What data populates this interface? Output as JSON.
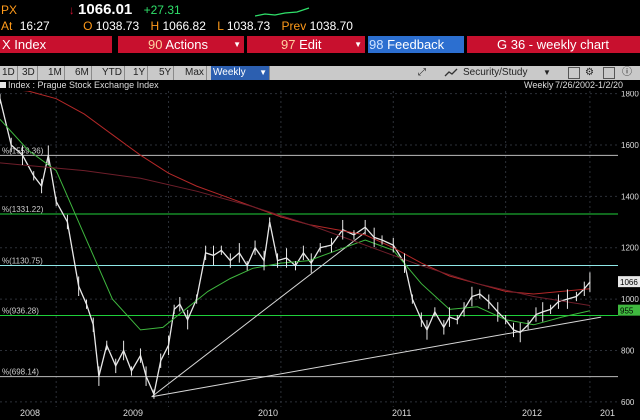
{
  "quote": {
    "ticker": "PX",
    "arrow": "↓",
    "last": "1066.01",
    "change": "+27.31",
    "at_label": "At",
    "time": "16:27",
    "o_label": "O",
    "open": "1038.73",
    "h_label": "H",
    "high": "1066.82",
    "l_label": "L",
    "low": "1038.73",
    "prev_label": "Prev",
    "prev": "1038.70"
  },
  "command_bar": {
    "index_label": "X Index",
    "actions_num": "90",
    "actions_label": "Actions",
    "edit_num": "97",
    "edit_label": "Edit",
    "feedback_num": "98",
    "feedback_label": "Feedback",
    "chart_title": "G 36 - weekly chart"
  },
  "toolbar": {
    "ranges": [
      "1D",
      "3D",
      "1M",
      "6M",
      "YTD",
      "1Y",
      "5Y",
      "Max"
    ],
    "period": "Weekly",
    "security_label": "Security/Study"
  },
  "subheader": {
    "legend": "Index : Prague Stock Exchange Index",
    "period_label": "Weekly",
    "date_range": "7/26/2002-1/2/20"
  },
  "chart_data": {
    "type": "line",
    "title": "",
    "xlabel": "",
    "ylabel": "",
    "x_ticks": [
      "2008",
      "2009",
      "2010",
      "2011",
      "2012",
      "201"
    ],
    "y_ticks": [
      "600",
      "800",
      "1000",
      "1200",
      "1400",
      "1600",
      "1800"
    ],
    "ylim": [
      580,
      1810
    ],
    "fib_levels": [
      {
        "label": "%(1559.36)",
        "value": 1559.36
      },
      {
        "label": "%(1331.22)",
        "value": 1331.22
      },
      {
        "label": "%(1130.75)",
        "value": 1130.75
      },
      {
        "label": "%(936.28)",
        "value": 936.28
      },
      {
        "label": "%(698.14)",
        "value": 698.14
      }
    ],
    "last_price_tag": "1066",
    "ma_tag": "955",
    "series": [
      {
        "values": [
          [
            2007.75,
            1780
          ],
          [
            2007.85,
            1600
          ],
          [
            2007.95,
            1560
          ],
          [
            2008.05,
            1480
          ],
          [
            2008.12,
            1440
          ],
          [
            2008.18,
            1560
          ],
          [
            2008.25,
            1380
          ],
          [
            2008.35,
            1300
          ],
          [
            2008.45,
            1050
          ],
          [
            2008.52,
            980
          ],
          [
            2008.58,
            900
          ],
          [
            2008.63,
            700
          ],
          [
            2008.7,
            820
          ],
          [
            2008.78,
            740
          ],
          [
            2008.85,
            800
          ],
          [
            2008.92,
            720
          ],
          [
            2009.0,
            780
          ],
          [
            2009.05,
            700
          ],
          [
            2009.12,
            630
          ],
          [
            2009.18,
            760
          ],
          [
            2009.25,
            820
          ],
          [
            2009.3,
            960
          ],
          [
            2009.35,
            980
          ],
          [
            2009.42,
            920
          ],
          [
            2009.5,
            1000
          ],
          [
            2009.58,
            1180
          ],
          [
            2009.65,
            1170
          ],
          [
            2009.72,
            1190
          ],
          [
            2009.8,
            1150
          ],
          [
            2009.88,
            1180
          ],
          [
            2009.95,
            1130
          ],
          [
            2010.02,
            1200
          ],
          [
            2010.1,
            1150
          ],
          [
            2010.15,
            1300
          ],
          [
            2010.22,
            1150
          ],
          [
            2010.3,
            1160
          ],
          [
            2010.38,
            1130
          ],
          [
            2010.45,
            1180
          ],
          [
            2010.52,
            1140
          ],
          [
            2010.6,
            1200
          ],
          [
            2010.7,
            1210
          ],
          [
            2010.8,
            1270
          ],
          [
            2010.9,
            1250
          ],
          [
            2011.0,
            1280
          ],
          [
            2011.08,
            1240
          ],
          [
            2011.15,
            1230
          ],
          [
            2011.25,
            1210
          ],
          [
            2011.35,
            1140
          ],
          [
            2011.42,
            1000
          ],
          [
            2011.5,
            920
          ],
          [
            2011.55,
            880
          ],
          [
            2011.62,
            950
          ],
          [
            2011.7,
            890
          ],
          [
            2011.75,
            930
          ],
          [
            2011.82,
            920
          ],
          [
            2011.88,
            960
          ],
          [
            2011.95,
            1010
          ],
          [
            2012.02,
            1020
          ],
          [
            2012.1,
            990
          ],
          [
            2012.18,
            950
          ],
          [
            2012.25,
            920
          ],
          [
            2012.32,
            880
          ],
          [
            2012.38,
            870
          ],
          [
            2012.45,
            900
          ],
          [
            2012.52,
            940
          ],
          [
            2012.58,
            950
          ],
          [
            2012.65,
            960
          ],
          [
            2012.72,
            990
          ],
          [
            2012.8,
            1000
          ],
          [
            2012.88,
            1010
          ],
          [
            2012.95,
            1040
          ],
          [
            2013.0,
            1066
          ]
        ]
      },
      {
        "values": [
          [
            2007.75,
            1700
          ],
          [
            2008.0,
            1580
          ],
          [
            2008.25,
            1500
          ],
          [
            2008.5,
            1250
          ],
          [
            2008.75,
            1000
          ],
          [
            2009.0,
            880
          ],
          [
            2009.2,
            890
          ],
          [
            2009.4,
            960
          ],
          [
            2009.6,
            1030
          ],
          [
            2009.8,
            1080
          ],
          [
            2010.0,
            1120
          ],
          [
            2010.25,
            1140
          ],
          [
            2010.5,
            1150
          ],
          [
            2010.75,
            1190
          ],
          [
            2011.0,
            1230
          ],
          [
            2011.25,
            1190
          ],
          [
            2011.5,
            1060
          ],
          [
            2011.75,
            960
          ],
          [
            2012.0,
            970
          ],
          [
            2012.25,
            920
          ],
          [
            2012.5,
            900
          ],
          [
            2012.75,
            930
          ],
          [
            2013.0,
            955
          ]
        ]
      },
      {
        "values": [
          [
            2007.75,
            1820
          ],
          [
            2008.0,
            1810
          ],
          [
            2008.25,
            1780
          ],
          [
            2008.5,
            1720
          ],
          [
            2008.75,
            1640
          ],
          [
            2009.0,
            1560
          ],
          [
            2009.25,
            1490
          ],
          [
            2009.5,
            1440
          ],
          [
            2009.75,
            1400
          ],
          [
            2010.0,
            1360
          ],
          [
            2010.25,
            1320
          ],
          [
            2010.5,
            1290
          ],
          [
            2010.75,
            1270
          ],
          [
            2011.0,
            1250
          ],
          [
            2011.25,
            1200
          ],
          [
            2011.5,
            1140
          ],
          [
            2011.75,
            1090
          ],
          [
            2012.0,
            1060
          ],
          [
            2012.25,
            1030
          ],
          [
            2012.5,
            1020
          ],
          [
            2012.75,
            1030
          ],
          [
            2013.0,
            1040
          ]
        ]
      },
      {
        "values": [
          [
            2007.75,
            1530
          ],
          [
            2008.0,
            1520
          ],
          [
            2008.5,
            1500
          ],
          [
            2009.0,
            1470
          ],
          [
            2009.5,
            1420
          ],
          [
            2010.0,
            1360
          ],
          [
            2010.5,
            1290
          ],
          [
            2011.0,
            1210
          ],
          [
            2011.5,
            1130
          ],
          [
            2012.0,
            1060
          ],
          [
            2012.5,
            1010
          ],
          [
            2013.0,
            975
          ]
        ]
      }
    ],
    "trendlines": [
      [
        [
          2009.1,
          620
        ],
        [
          2011.0,
          1260
        ]
      ],
      [
        [
          2009.1,
          620
        ],
        [
          2013.1,
          930
        ]
      ]
    ],
    "colors": {
      "price": "#e8e8e8",
      "ma_green": "#3fb83f",
      "ma_red": "#b42828",
      "ma_red2": "#6e1e2a",
      "trend": "#d8d8d8",
      "fib_green": "#1fcf3a",
      "fib_cyan": "#8fe8e8",
      "grid": "#2c3038"
    }
  }
}
